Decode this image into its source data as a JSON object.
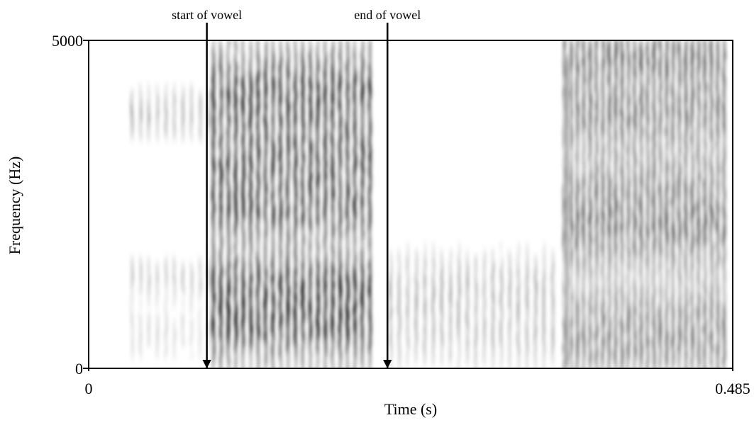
{
  "chart_data": {
    "type": "spectrogram",
    "xlabel": "Time (s)",
    "ylabel": "Frequency (Hz)",
    "xlim": [
      0,
      0.485
    ],
    "ylim": [
      0,
      5000
    ],
    "xticks": [
      0,
      0.485
    ],
    "yticks": [
      0,
      5000
    ],
    "annotations": [
      {
        "text": "start of vowel",
        "x": 0.089
      },
      {
        "text": "end of vowel",
        "x": 0.225
      }
    ]
  }
}
